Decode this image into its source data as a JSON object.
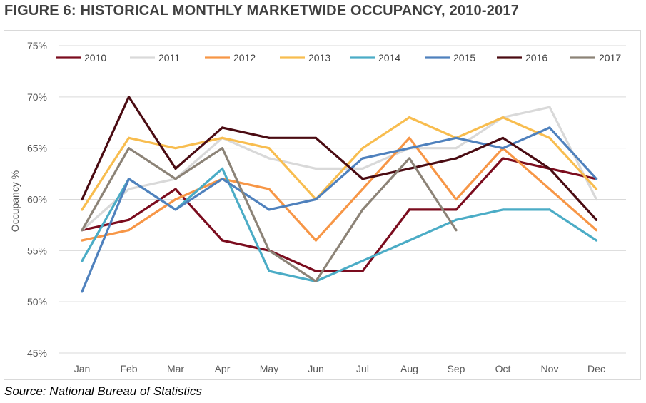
{
  "figure": {
    "title": "FIGURE 6: HISTORICAL MONTHLY MARKETWIDE OCCUPANCY, 2010-2017",
    "source": "Source: National Bureau of Statistics"
  },
  "chart_data": {
    "type": "line",
    "title": "",
    "xlabel": "",
    "ylabel": "Occupancy %",
    "categories": [
      "Jan",
      "Feb",
      "Mar",
      "Apr",
      "May",
      "Jun",
      "Jul",
      "Aug",
      "Sep",
      "Oct",
      "Nov",
      "Dec"
    ],
    "ylim": [
      45,
      75
    ],
    "yticks": [
      "45%",
      "50%",
      "55%",
      "60%",
      "65%",
      "70%",
      "75%"
    ],
    "grid": "horizontal",
    "legend": "top",
    "series": [
      {
        "name": "2010",
        "color": "#7b0c1e",
        "values": [
          57,
          58,
          61,
          56,
          55,
          53,
          53,
          59,
          59,
          64,
          63,
          62
        ]
      },
      {
        "name": "2011",
        "color": "#d9d9d9",
        "values": [
          57,
          61,
          62,
          66,
          64,
          63,
          63,
          65,
          65,
          68,
          69,
          60
        ]
      },
      {
        "name": "2012",
        "color": "#f79646",
        "values": [
          56,
          57,
          60,
          62,
          61,
          56,
          61,
          66,
          60,
          65,
          61,
          57
        ]
      },
      {
        "name": "2013",
        "color": "#f8bd4f",
        "values": [
          59,
          66,
          65,
          66,
          65,
          60,
          65,
          68,
          66,
          68,
          66,
          61
        ]
      },
      {
        "name": "2014",
        "color": "#4bacc6",
        "values": [
          54,
          62,
          59,
          63,
          53,
          52,
          54,
          56,
          58,
          59,
          59,
          56
        ]
      },
      {
        "name": "2015",
        "color": "#4f81bd",
        "values": [
          51,
          62,
          59,
          62,
          59,
          60,
          64,
          65,
          66,
          65,
          67,
          62
        ]
      },
      {
        "name": "2016",
        "color": "#4a0b12",
        "values": [
          60,
          70,
          63,
          67,
          66,
          66,
          62,
          63,
          64,
          66,
          63,
          58
        ]
      },
      {
        "name": "2017",
        "color": "#8c8377",
        "values": [
          57,
          65,
          62,
          65,
          55,
          52,
          59,
          64,
          57,
          null,
          null,
          null
        ]
      }
    ]
  }
}
